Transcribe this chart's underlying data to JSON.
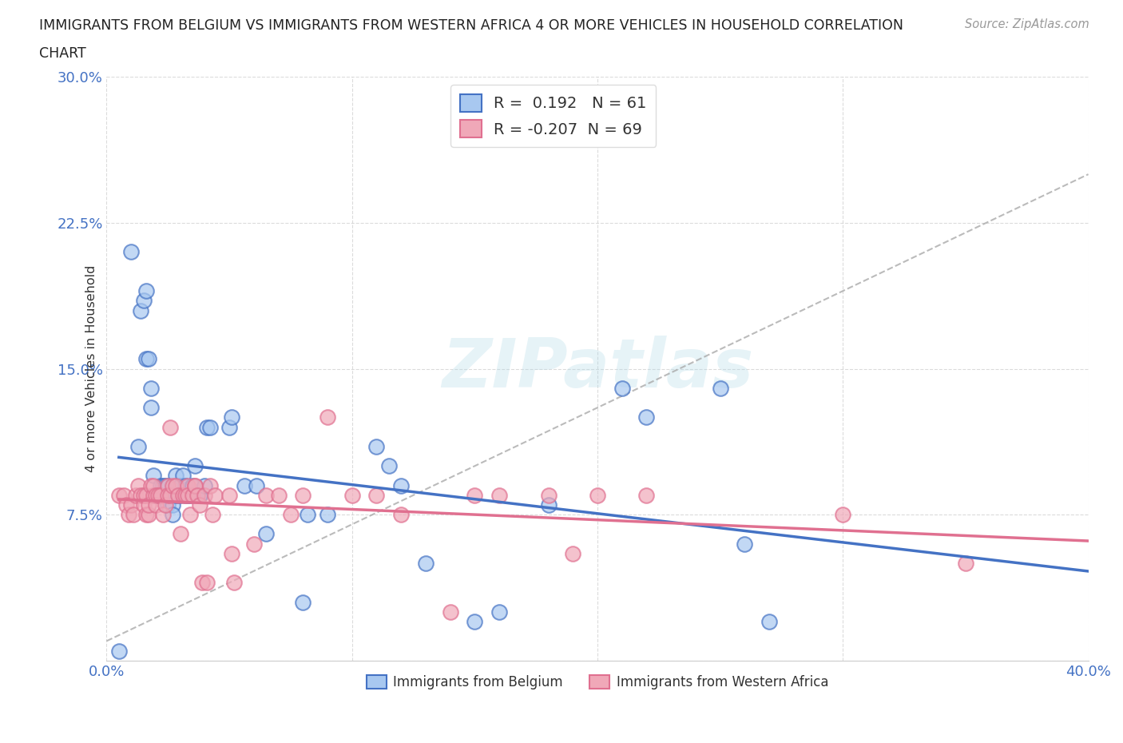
{
  "title_line1": "IMMIGRANTS FROM BELGIUM VS IMMIGRANTS FROM WESTERN AFRICA 4 OR MORE VEHICLES IN HOUSEHOLD CORRELATION",
  "title_line2": "CHART",
  "source_text": "Source: ZipAtlas.com",
  "ylabel": "4 or more Vehicles in Household",
  "xlim": [
    0.0,
    0.4
  ],
  "ylim": [
    0.0,
    0.3
  ],
  "xticks": [
    0.0,
    0.1,
    0.2,
    0.3,
    0.4
  ],
  "yticks": [
    0.0,
    0.075,
    0.15,
    0.225,
    0.3
  ],
  "xticklabels": [
    "0.0%",
    "",
    "",
    "",
    "40.0%"
  ],
  "yticklabels": [
    "",
    "7.5%",
    "15.0%",
    "22.5%",
    "30.0%"
  ],
  "watermark": "ZIPatlas",
  "belgium_R": 0.192,
  "belgium_N": 61,
  "wa_R": -0.207,
  "wa_N": 69,
  "belgium_color": "#a8c8f0",
  "wa_color": "#f0a8b8",
  "belgium_line_color": "#4472c4",
  "wa_line_color": "#e07090",
  "background_color": "#ffffff",
  "grid_color": "#cccccc",
  "belgium_x": [
    0.005,
    0.01,
    0.013,
    0.014,
    0.015,
    0.016,
    0.016,
    0.017,
    0.018,
    0.018,
    0.019,
    0.02,
    0.02,
    0.021,
    0.022,
    0.022,
    0.023,
    0.024,
    0.025,
    0.025,
    0.026,
    0.027,
    0.027,
    0.028,
    0.028,
    0.029,
    0.03,
    0.03,
    0.031,
    0.032,
    0.032,
    0.033,
    0.034,
    0.035,
    0.036,
    0.036,
    0.038,
    0.038,
    0.04,
    0.041,
    0.042,
    0.05,
    0.051,
    0.056,
    0.061,
    0.065,
    0.08,
    0.082,
    0.09,
    0.11,
    0.115,
    0.12,
    0.13,
    0.15,
    0.16,
    0.18,
    0.21,
    0.22,
    0.25,
    0.26,
    0.27
  ],
  "belgium_y": [
    0.005,
    0.21,
    0.11,
    0.18,
    0.185,
    0.19,
    0.155,
    0.155,
    0.14,
    0.13,
    0.095,
    0.085,
    0.085,
    0.085,
    0.09,
    0.085,
    0.09,
    0.09,
    0.09,
    0.08,
    0.085,
    0.08,
    0.075,
    0.095,
    0.085,
    0.085,
    0.085,
    0.09,
    0.095,
    0.09,
    0.085,
    0.085,
    0.085,
    0.09,
    0.085,
    0.1,
    0.085,
    0.085,
    0.09,
    0.12,
    0.12,
    0.12,
    0.125,
    0.09,
    0.09,
    0.065,
    0.03,
    0.075,
    0.075,
    0.11,
    0.1,
    0.09,
    0.05,
    0.02,
    0.025,
    0.08,
    0.14,
    0.125,
    0.14,
    0.06,
    0.02
  ],
  "wa_x": [
    0.005,
    0.007,
    0.008,
    0.009,
    0.01,
    0.011,
    0.012,
    0.013,
    0.014,
    0.015,
    0.015,
    0.016,
    0.016,
    0.017,
    0.017,
    0.018,
    0.019,
    0.019,
    0.02,
    0.02,
    0.021,
    0.022,
    0.023,
    0.024,
    0.025,
    0.025,
    0.026,
    0.026,
    0.027,
    0.028,
    0.029,
    0.03,
    0.031,
    0.032,
    0.033,
    0.033,
    0.034,
    0.035,
    0.036,
    0.036,
    0.037,
    0.038,
    0.039,
    0.04,
    0.041,
    0.042,
    0.043,
    0.044,
    0.05,
    0.051,
    0.052,
    0.06,
    0.065,
    0.07,
    0.075,
    0.08,
    0.09,
    0.1,
    0.11,
    0.12,
    0.14,
    0.15,
    0.16,
    0.18,
    0.19,
    0.2,
    0.22,
    0.3,
    0.35
  ],
  "wa_y": [
    0.085,
    0.085,
    0.08,
    0.075,
    0.08,
    0.075,
    0.085,
    0.09,
    0.085,
    0.08,
    0.085,
    0.085,
    0.075,
    0.075,
    0.08,
    0.09,
    0.085,
    0.09,
    0.085,
    0.08,
    0.085,
    0.085,
    0.075,
    0.08,
    0.09,
    0.085,
    0.12,
    0.085,
    0.09,
    0.09,
    0.085,
    0.065,
    0.085,
    0.085,
    0.09,
    0.085,
    0.075,
    0.085,
    0.09,
    0.09,
    0.085,
    0.08,
    0.04,
    0.085,
    0.04,
    0.09,
    0.075,
    0.085,
    0.085,
    0.055,
    0.04,
    0.06,
    0.085,
    0.085,
    0.075,
    0.085,
    0.125,
    0.085,
    0.085,
    0.075,
    0.025,
    0.085,
    0.085,
    0.085,
    0.055,
    0.085,
    0.085,
    0.075,
    0.05
  ],
  "legend1_label": "Immigrants from Belgium",
  "legend2_label": "Immigrants from Western Africa"
}
